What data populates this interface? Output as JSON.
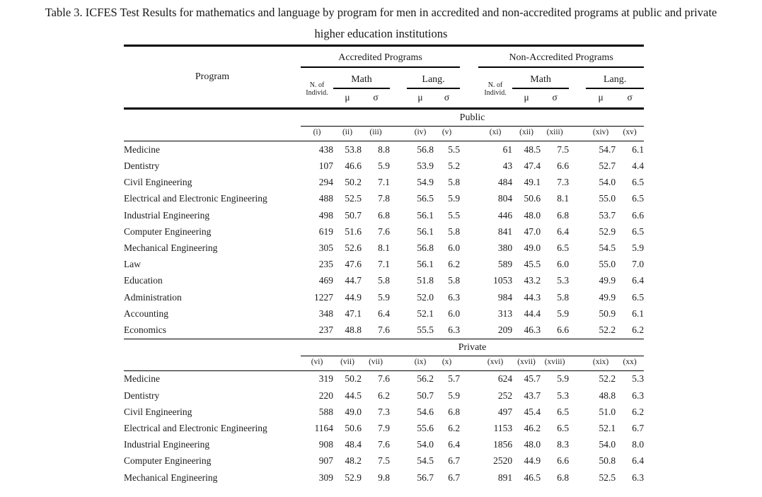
{
  "title": "Table 3. ICFES Test Results for mathematics and language by program for men in accredited and non-accredited programs at public and private\nhigher education institutions",
  "table": {
    "program_header": "Program",
    "groups": [
      {
        "label": "Accredited Programs"
      },
      {
        "label": "Non-Accredited Programs"
      }
    ],
    "n_of_individ": "N. of\nIndivid.",
    "math_label": "Math",
    "lang_label": "Lang.",
    "mu": "μ",
    "sigma": "σ",
    "sections": [
      {
        "name": "Public",
        "col_labels": [
          "(i)",
          "(ii)",
          "(iii)",
          "(iv)",
          "(v)",
          "(xi)",
          "(xii)",
          "(xiii)",
          "(xiv)",
          "(xv)"
        ],
        "rows": [
          {
            "program": "Medicine",
            "values": [
              "438",
              "53.8",
              "8.8",
              "56.8",
              "5.5",
              "61",
              "48.5",
              "7.5",
              "54.7",
              "6.1"
            ]
          },
          {
            "program": "Dentistry",
            "values": [
              "107",
              "46.6",
              "5.9",
              "53.9",
              "5.2",
              "43",
              "47.4",
              "6.6",
              "52.7",
              "4.4"
            ]
          },
          {
            "program": "Civil Engineering",
            "values": [
              "294",
              "50.2",
              "7.1",
              "54.9",
              "5.8",
              "484",
              "49.1",
              "7.3",
              "54.0",
              "6.5"
            ]
          },
          {
            "program": "Electrical and Electronic Engineering",
            "values": [
              "488",
              "52.5",
              "7.8",
              "56.5",
              "5.9",
              "804",
              "50.6",
              "8.1",
              "55.0",
              "6.5"
            ]
          },
          {
            "program": "Industrial Engineering",
            "values": [
              "498",
              "50.7",
              "6.8",
              "56.1",
              "5.5",
              "446",
              "48.0",
              "6.8",
              "53.7",
              "6.6"
            ]
          },
          {
            "program": "Computer Engineering",
            "values": [
              "619",
              "51.6",
              "7.6",
              "56.1",
              "5.8",
              "841",
              "47.0",
              "6.4",
              "52.9",
              "6.5"
            ]
          },
          {
            "program": "Mechanical Engineering",
            "values": [
              "305",
              "52.6",
              "8.1",
              "56.8",
              "6.0",
              "380",
              "49.0",
              "6.5",
              "54.5",
              "5.9"
            ]
          },
          {
            "program": "Law",
            "values": [
              "235",
              "47.6",
              "7.1",
              "56.1",
              "6.2",
              "589",
              "45.5",
              "6.0",
              "55.0",
              "7.0"
            ]
          },
          {
            "program": "Education",
            "values": [
              "469",
              "44.7",
              "5.8",
              "51.8",
              "5.8",
              "1053",
              "43.2",
              "5.3",
              "49.9",
              "6.4"
            ]
          },
          {
            "program": "Administration",
            "values": [
              "1227",
              "44.9",
              "5.9",
              "52.0",
              "6.3",
              "984",
              "44.3",
              "5.8",
              "49.9",
              "6.5"
            ]
          },
          {
            "program": "Accounting",
            "values": [
              "348",
              "47.1",
              "6.4",
              "52.1",
              "6.0",
              "313",
              "44.4",
              "5.9",
              "50.9",
              "6.1"
            ]
          },
          {
            "program": "Economics",
            "values": [
              "237",
              "48.8",
              "7.6",
              "55.5",
              "6.3",
              "209",
              "46.3",
              "6.6",
              "52.2",
              "6.2"
            ]
          }
        ]
      },
      {
        "name": "Private",
        "col_labels": [
          "(vi)",
          "(vii)",
          "(vii)",
          "(ix)",
          "(x)",
          "(xvi)",
          "(xvii)",
          "(xviii)",
          "(xix)",
          "(xx)"
        ],
        "rows": [
          {
            "program": "Medicine",
            "values": [
              "319",
              "50.2",
              "7.6",
              "56.2",
              "5.7",
              "624",
              "45.7",
              "5.9",
              "52.2",
              "5.3"
            ]
          },
          {
            "program": "Dentistry",
            "values": [
              "220",
              "44.5",
              "6.2",
              "50.7",
              "5.9",
              "252",
              "43.7",
              "5.3",
              "48.8",
              "6.3"
            ]
          },
          {
            "program": "Civil Engineering",
            "values": [
              "588",
              "49.0",
              "7.3",
              "54.6",
              "6.8",
              "497",
              "45.4",
              "6.5",
              "51.0",
              "6.2"
            ]
          },
          {
            "program": "Electrical and Electronic Engineering",
            "values": [
              "1164",
              "50.6",
              "7.9",
              "55.6",
              "6.2",
              "1153",
              "46.2",
              "6.5",
              "52.1",
              "6.7"
            ]
          },
          {
            "program": "Industrial Engineering",
            "values": [
              "908",
              "48.4",
              "7.6",
              "54.0",
              "6.4",
              "1856",
              "48.0",
              "8.3",
              "54.0",
              "8.0"
            ]
          },
          {
            "program": "Computer Engineering",
            "values": [
              "907",
              "48.2",
              "7.5",
              "54.5",
              "6.7",
              "2520",
              "44.9",
              "6.6",
              "50.8",
              "6.4"
            ]
          },
          {
            "program": "Mechanical Engineering",
            "values": [
              "309",
              "52.9",
              "9.8",
              "56.7",
              "6.7",
              "891",
              "46.5",
              "6.8",
              "52.5",
              "6.3"
            ]
          }
        ]
      }
    ]
  }
}
